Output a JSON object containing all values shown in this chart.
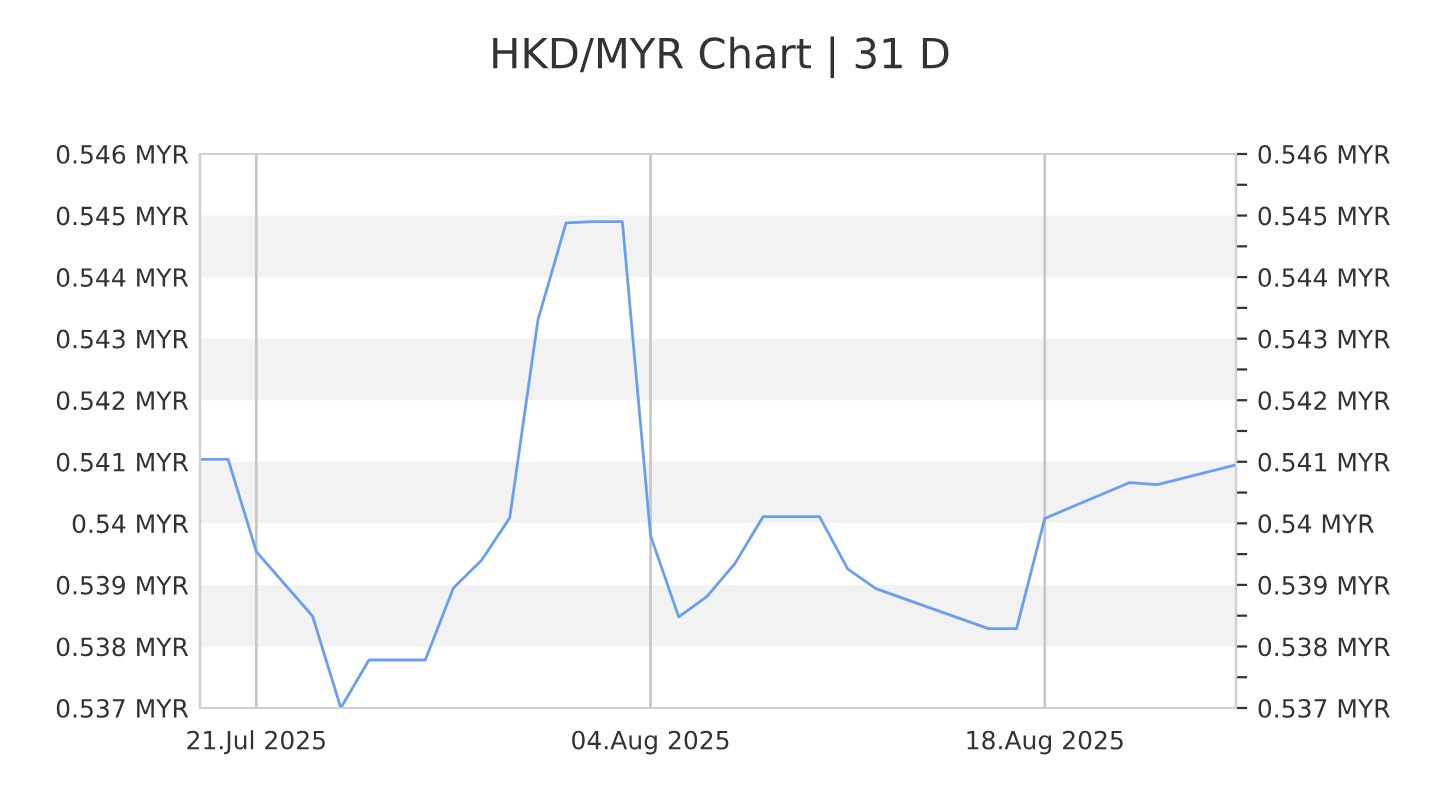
{
  "chart_data": {
    "type": "line",
    "title": "HKD/MYR Chart | 31 D",
    "x": [
      "2025-07-19",
      "2025-07-20",
      "2025-07-21",
      "2025-07-23",
      "2025-07-24",
      "2025-07-25",
      "2025-07-27",
      "2025-07-28",
      "2025-07-29",
      "2025-07-30",
      "2025-07-31",
      "2025-08-01",
      "2025-08-02",
      "2025-08-03",
      "2025-08-04",
      "2025-08-05",
      "2025-08-06",
      "2025-08-07",
      "2025-08-08",
      "2025-08-10",
      "2025-08-11",
      "2025-08-12",
      "2025-08-16",
      "2025-08-17",
      "2025-08-18",
      "2025-08-21",
      "2025-08-22",
      "2025-08-24T19:00"
    ],
    "series": [
      {
        "color": "#6a9ff0",
        "values": [
          0.54104,
          0.54104,
          0.53954,
          0.53849,
          0.537,
          0.53778,
          0.53778,
          0.53895,
          0.5394,
          0.54009,
          0.5433,
          0.54488,
          0.5449,
          0.5449,
          0.5398,
          0.53848,
          0.53881,
          0.53935,
          0.54011,
          0.54011,
          0.53926,
          0.53894,
          0.53829,
          0.53829,
          0.54008,
          0.54066,
          0.54063,
          0.54095
        ]
      }
    ],
    "xlim": [
      "2025-07-19",
      "2025-08-24T19:00"
    ],
    "xticks": [
      {
        "value": "2025-07-21",
        "label": "21.Jul 2025"
      },
      {
        "value": "2025-08-04",
        "label": "04.Aug 2025"
      },
      {
        "value": "2025-08-18",
        "label": "18.Aug 2025"
      }
    ],
    "ylim": [
      0.537,
      0.546
    ],
    "yticks": [
      {
        "value": 0.537,
        "label": "0.537 MYR"
      },
      {
        "value": 0.538,
        "label": "0.538 MYR"
      },
      {
        "value": 0.539,
        "label": "0.539 MYR"
      },
      {
        "value": 0.54,
        "label": "0.54 MYR"
      },
      {
        "value": 0.541,
        "label": "0.541 MYR"
      },
      {
        "value": 0.542,
        "label": "0.542 MYR"
      },
      {
        "value": 0.543,
        "label": "0.543 MYR"
      },
      {
        "value": 0.544,
        "label": "0.544 MYR"
      },
      {
        "value": 0.545,
        "label": "0.545 MYR"
      },
      {
        "value": 0.546,
        "label": "0.546 MYR"
      }
    ],
    "y2lim": [
      0.537,
      0.546
    ],
    "y2ticks": [
      {
        "value": 0.537,
        "label": "0.537 MYR"
      },
      {
        "value": 0.5375,
        "label": null
      },
      {
        "value": 0.538,
        "label": "0.538 MYR"
      },
      {
        "value": 0.5385,
        "label": null
      },
      {
        "value": 0.539,
        "label": "0.539 MYR"
      },
      {
        "value": 0.5395,
        "label": null
      },
      {
        "value": 0.54,
        "label": "0.54 MYR"
      },
      {
        "value": 0.5405,
        "label": null
      },
      {
        "value": 0.541,
        "label": "0.541 MYR"
      },
      {
        "value": 0.5415,
        "label": null
      },
      {
        "value": 0.542,
        "label": "0.542 MYR"
      },
      {
        "value": 0.5425,
        "label": null
      },
      {
        "value": 0.543,
        "label": "0.543 MYR"
      },
      {
        "value": 0.5435,
        "label": null
      },
      {
        "value": 0.544,
        "label": "0.544 MYR"
      },
      {
        "value": 0.5445,
        "label": null
      },
      {
        "value": 0.545,
        "label": "0.545 MYR"
      },
      {
        "value": 0.5455,
        "label": null
      },
      {
        "value": 0.546,
        "label": "0.546 MYR"
      }
    ],
    "bands": [
      {
        "axis": "y",
        "from": 0.538,
        "to": 0.539,
        "color": "#f2f2f2"
      },
      {
        "axis": "y",
        "from": 0.54,
        "to": 0.541,
        "color": "#f2f2f2"
      },
      {
        "axis": "y",
        "from": 0.542,
        "to": 0.543,
        "color": "#f2f2f2"
      },
      {
        "axis": "y",
        "from": 0.544,
        "to": 0.545,
        "color": "#f2f2f2"
      }
    ],
    "grid": "x",
    "legend": false,
    "marker": "none",
    "line_style": "solid"
  }
}
